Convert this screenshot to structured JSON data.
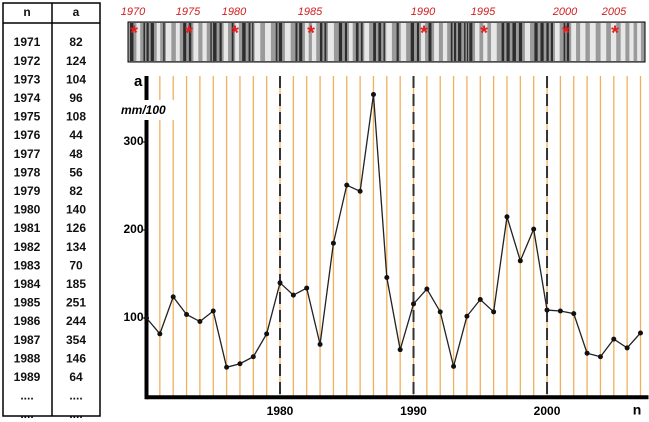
{
  "table": {
    "header": [
      "n",
      "a"
    ],
    "rows": [
      [
        "1971",
        "82"
      ],
      [
        "1972",
        "124"
      ],
      [
        "1973",
        "104"
      ],
      [
        "1974",
        "96"
      ],
      [
        "1975",
        "108"
      ],
      [
        "1976",
        "44"
      ],
      [
        "1977",
        "48"
      ],
      [
        "1978",
        "56"
      ],
      [
        "1979",
        "82"
      ],
      [
        "1980",
        "140"
      ],
      [
        "1981",
        "126"
      ],
      [
        "1982",
        "134"
      ],
      [
        "1983",
        "70"
      ],
      [
        "1984",
        "185"
      ],
      [
        "1985",
        "251"
      ],
      [
        "1986",
        "244"
      ],
      [
        "1987",
        "354"
      ],
      [
        "1988",
        "146"
      ],
      [
        "1989",
        "64"
      ],
      [
        "....",
        "...."
      ],
      [
        "....",
        "...."
      ]
    ]
  },
  "ring_strip": {
    "labels": [
      "1970",
      "1975",
      "1980",
      "1985",
      "1990",
      "1995",
      "2000",
      "2005"
    ]
  },
  "chart_data": {
    "type": "line",
    "y_label": "a",
    "unit_label": "mm/100",
    "x_label": "n",
    "x": [
      1970,
      1971,
      1972,
      1973,
      1974,
      1975,
      1976,
      1977,
      1978,
      1979,
      1980,
      1981,
      1982,
      1983,
      1984,
      1985,
      1986,
      1987,
      1988,
      1989,
      1990,
      1991,
      1992,
      1993,
      1994,
      1995,
      1996,
      1997,
      1998,
      1999,
      2000,
      2001,
      2002,
      2003,
      2004,
      2005,
      2006,
      2007
    ],
    "series": [
      {
        "name": "a",
        "color": "#222222",
        "values": [
          100,
          82,
          124,
          104,
          96,
          108,
          44,
          48,
          56,
          82,
          140,
          126,
          134,
          70,
          185,
          251,
          244,
          354,
          146,
          64,
          116,
          133,
          107,
          45,
          102,
          121,
          107,
          215,
          165,
          201,
          109,
          108,
          105,
          60,
          56,
          76,
          66,
          83
        ]
      }
    ],
    "xlim": [
      1970,
      2007.6
    ],
    "xticks": [
      1980,
      1990,
      2000
    ],
    "ylim": [
      10,
      375
    ],
    "yticks": [
      100,
      200,
      300
    ],
    "grid_color": "#f0b060",
    "marker_color": "#111111"
  }
}
